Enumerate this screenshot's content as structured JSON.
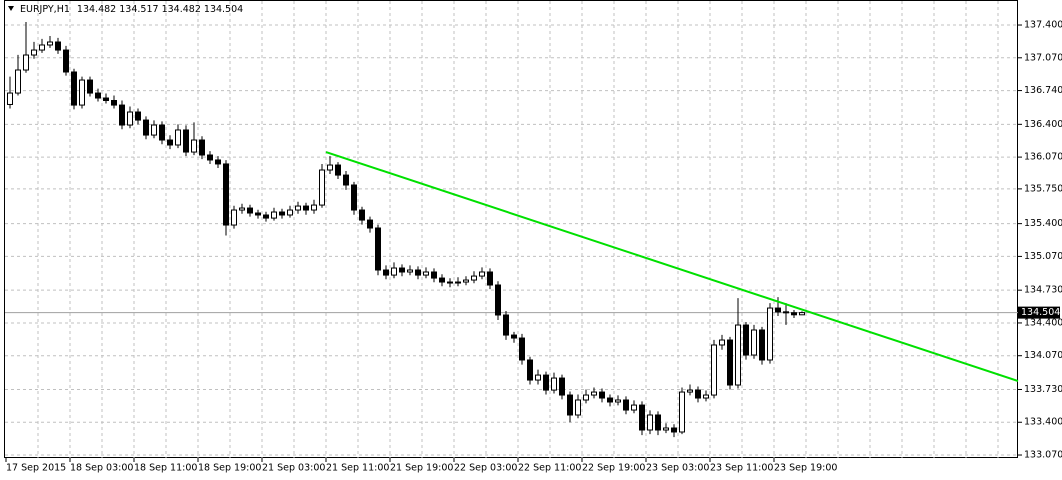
{
  "chart_data": {
    "type": "candlestick",
    "symbol": "EURJPY,H1",
    "current_price": 134.504,
    "up_color": "#ffffff",
    "down_color": "#000000",
    "grid": true,
    "ylim": [
      133.04,
      137.652
    ],
    "yticks": [
      {
        "value": 137.4,
        "label": "137.400"
      },
      {
        "value": 137.07,
        "label": "137.070"
      },
      {
        "value": 136.74,
        "label": "136.740"
      },
      {
        "value": 136.4,
        "label": "136.400"
      },
      {
        "value": 136.07,
        "label": "136.070"
      },
      {
        "value": 135.75,
        "label": "135.750"
      },
      {
        "value": 135.4,
        "label": "135.400"
      },
      {
        "value": 135.07,
        "label": "135.070"
      },
      {
        "value": 134.73,
        "label": "134.730"
      },
      {
        "value": 134.4,
        "label": "134.400"
      },
      {
        "value": 134.07,
        "label": "134.070"
      },
      {
        "value": 133.73,
        "label": "133.730"
      },
      {
        "value": 133.4,
        "label": "133.400"
      },
      {
        "value": 133.07,
        "label": "133.070"
      }
    ],
    "categories": [
      "17 Sep 2015",
      null,
      null,
      null,
      null,
      null,
      null,
      null,
      "18 Sep 03:00",
      null,
      null,
      null,
      null,
      null,
      null,
      null,
      "18 Sep 11:00",
      null,
      null,
      null,
      null,
      null,
      null,
      null,
      "18 Sep 19:00",
      null,
      null,
      null,
      null,
      null,
      null,
      null,
      "21 Sep 03:00",
      null,
      null,
      null,
      null,
      null,
      null,
      null,
      "21 Sep 11:00",
      null,
      null,
      null,
      null,
      null,
      null,
      null,
      "21 Sep 19:00",
      null,
      null,
      null,
      null,
      null,
      null,
      null,
      "22 Sep 03:00",
      null,
      null,
      null,
      null,
      null,
      null,
      null,
      "22 Sep 11:00",
      null,
      null,
      null,
      null,
      null,
      null,
      null,
      "22 Sep 19:00",
      null,
      null,
      null,
      null,
      null,
      null,
      null,
      "23 Sep 03:00",
      null,
      null,
      null,
      null,
      null,
      null,
      null,
      "23 Sep 11:00",
      null,
      null,
      null,
      null,
      null,
      null,
      null,
      "23 Sep 19:00",
      null,
      null,
      null
    ],
    "ohlc": [
      [
        136.6,
        136.88,
        136.56,
        136.715
      ],
      [
        136.715,
        137.1,
        136.69,
        136.947
      ],
      [
        136.947,
        137.43,
        136.92,
        137.098
      ],
      [
        137.098,
        137.23,
        137.06,
        137.148
      ],
      [
        137.148,
        137.26,
        137.12,
        137.199
      ],
      [
        137.199,
        137.29,
        137.17,
        137.229
      ],
      [
        137.229,
        137.27,
        137.11,
        137.148
      ],
      [
        137.148,
        137.19,
        136.89,
        136.927
      ],
      [
        136.927,
        136.96,
        136.55,
        136.594
      ],
      [
        136.594,
        136.88,
        136.56,
        136.846
      ],
      [
        136.846,
        136.88,
        136.68,
        136.715
      ],
      [
        136.715,
        136.76,
        136.63,
        136.665
      ],
      [
        136.665,
        136.71,
        136.61,
        136.64
      ],
      [
        136.64,
        136.69,
        136.56,
        136.594
      ],
      [
        136.594,
        136.64,
        136.35,
        136.393
      ],
      [
        136.393,
        136.58,
        136.36,
        136.524
      ],
      [
        136.524,
        136.56,
        136.4,
        136.443
      ],
      [
        136.443,
        136.48,
        136.25,
        136.292
      ],
      [
        136.292,
        136.44,
        136.26,
        136.393
      ],
      [
        136.393,
        136.43,
        136.2,
        136.242
      ],
      [
        136.242,
        136.29,
        136.15,
        136.192
      ],
      [
        136.192,
        136.4,
        136.16,
        136.343
      ],
      [
        136.343,
        136.39,
        136.08,
        136.121
      ],
      [
        136.121,
        136.42,
        136.09,
        136.242
      ],
      [
        136.242,
        136.28,
        136.05,
        136.091
      ],
      [
        136.091,
        136.13,
        136.0,
        136.041
      ],
      [
        136.041,
        136.08,
        135.96,
        136.001
      ],
      [
        136.001,
        136.04,
        135.28,
        135.386
      ],
      [
        135.386,
        135.58,
        135.35,
        135.537
      ],
      [
        135.537,
        135.6,
        135.5,
        135.557
      ],
      [
        135.557,
        135.59,
        135.47,
        135.507
      ],
      [
        135.507,
        135.54,
        135.45,
        135.487
      ],
      [
        135.487,
        135.52,
        135.42,
        135.456
      ],
      [
        135.456,
        135.56,
        135.43,
        135.517
      ],
      [
        135.517,
        135.55,
        135.45,
        135.487
      ],
      [
        135.487,
        135.58,
        135.46,
        135.537
      ],
      [
        135.537,
        135.62,
        135.5,
        135.577
      ],
      [
        135.577,
        135.61,
        135.49,
        135.537
      ],
      [
        135.537,
        135.64,
        135.5,
        135.587
      ],
      [
        135.587,
        136.0,
        135.56,
        135.94
      ],
      [
        135.94,
        136.08,
        135.9,
        135.99
      ],
      [
        135.99,
        136.02,
        135.85,
        135.889
      ],
      [
        135.889,
        135.93,
        135.74,
        135.789
      ],
      [
        135.789,
        135.82,
        135.49,
        135.537
      ],
      [
        135.537,
        135.57,
        135.39,
        135.436
      ],
      [
        135.436,
        135.47,
        135.31,
        135.356
      ],
      [
        135.356,
        135.39,
        134.88,
        134.933
      ],
      [
        134.933,
        134.98,
        134.84,
        134.882
      ],
      [
        134.882,
        135.01,
        134.85,
        134.953
      ],
      [
        134.953,
        134.99,
        134.87,
        134.913
      ],
      [
        134.913,
        134.98,
        134.88,
        134.933
      ],
      [
        134.933,
        134.97,
        134.84,
        134.882
      ],
      [
        134.882,
        134.96,
        134.85,
        134.913
      ],
      [
        134.913,
        134.95,
        134.81,
        134.852
      ],
      [
        134.852,
        134.89,
        134.77,
        134.812
      ],
      [
        134.812,
        134.85,
        134.76,
        134.802
      ],
      [
        134.802,
        134.86,
        134.77,
        134.812
      ],
      [
        134.812,
        134.87,
        134.78,
        134.832
      ],
      [
        134.832,
        134.92,
        134.8,
        134.872
      ],
      [
        134.872,
        134.96,
        134.84,
        134.913
      ],
      [
        134.913,
        134.95,
        134.74,
        134.782
      ],
      [
        134.782,
        134.82,
        134.43,
        134.48
      ],
      [
        134.48,
        134.52,
        134.23,
        134.278
      ],
      [
        134.278,
        134.31,
        134.2,
        134.248
      ],
      [
        134.248,
        134.29,
        133.98,
        134.027
      ],
      [
        134.027,
        134.06,
        133.78,
        133.825
      ],
      [
        133.825,
        133.93,
        133.78,
        133.875
      ],
      [
        133.875,
        133.91,
        133.68,
        133.724
      ],
      [
        133.724,
        133.9,
        133.69,
        133.845
      ],
      [
        133.845,
        133.88,
        133.63,
        133.674
      ],
      [
        133.674,
        133.71,
        133.4,
        133.473
      ],
      [
        133.473,
        133.68,
        133.44,
        133.624
      ],
      [
        133.624,
        133.73,
        133.59,
        133.674
      ],
      [
        133.674,
        133.75,
        133.64,
        133.704
      ],
      [
        133.704,
        133.74,
        133.6,
        133.644
      ],
      [
        133.644,
        133.68,
        133.56,
        133.604
      ],
      [
        133.604,
        133.67,
        133.57,
        133.624
      ],
      [
        133.624,
        133.66,
        133.48,
        133.523
      ],
      [
        133.523,
        133.62,
        133.49,
        133.573
      ],
      [
        133.573,
        133.61,
        133.27,
        133.322
      ],
      [
        133.322,
        133.52,
        133.28,
        133.473
      ],
      [
        133.473,
        133.51,
        133.27,
        133.322
      ],
      [
        133.322,
        133.39,
        133.29,
        133.342
      ],
      [
        133.342,
        133.38,
        133.25,
        133.302
      ],
      [
        133.302,
        133.75,
        133.28,
        133.704
      ],
      [
        133.704,
        133.78,
        133.67,
        133.724
      ],
      [
        133.724,
        133.76,
        133.6,
        133.644
      ],
      [
        133.644,
        133.72,
        133.61,
        133.674
      ],
      [
        133.674,
        134.23,
        133.64,
        134.178
      ],
      [
        134.178,
        134.28,
        134.13,
        134.228
      ],
      [
        134.228,
        134.26,
        133.73,
        133.775
      ],
      [
        133.775,
        134.65,
        133.74,
        134.379
      ],
      [
        134.379,
        134.41,
        134.03,
        134.077
      ],
      [
        134.077,
        134.38,
        134.04,
        134.329
      ],
      [
        134.329,
        134.36,
        133.98,
        134.027
      ],
      [
        134.027,
        134.6,
        133.99,
        134.55
      ],
      [
        134.55,
        134.66,
        134.47,
        134.512
      ],
      [
        134.512,
        134.6,
        134.38,
        134.503
      ],
      [
        134.503,
        134.53,
        134.45,
        134.482
      ],
      [
        134.482,
        134.517,
        134.482,
        134.504
      ]
    ],
    "trendline": {
      "color": "#00e000",
      "start": {
        "index": 39.5,
        "price": 136.121
      },
      "end": {
        "index": 126,
        "price": 133.815
      }
    }
  }
}
